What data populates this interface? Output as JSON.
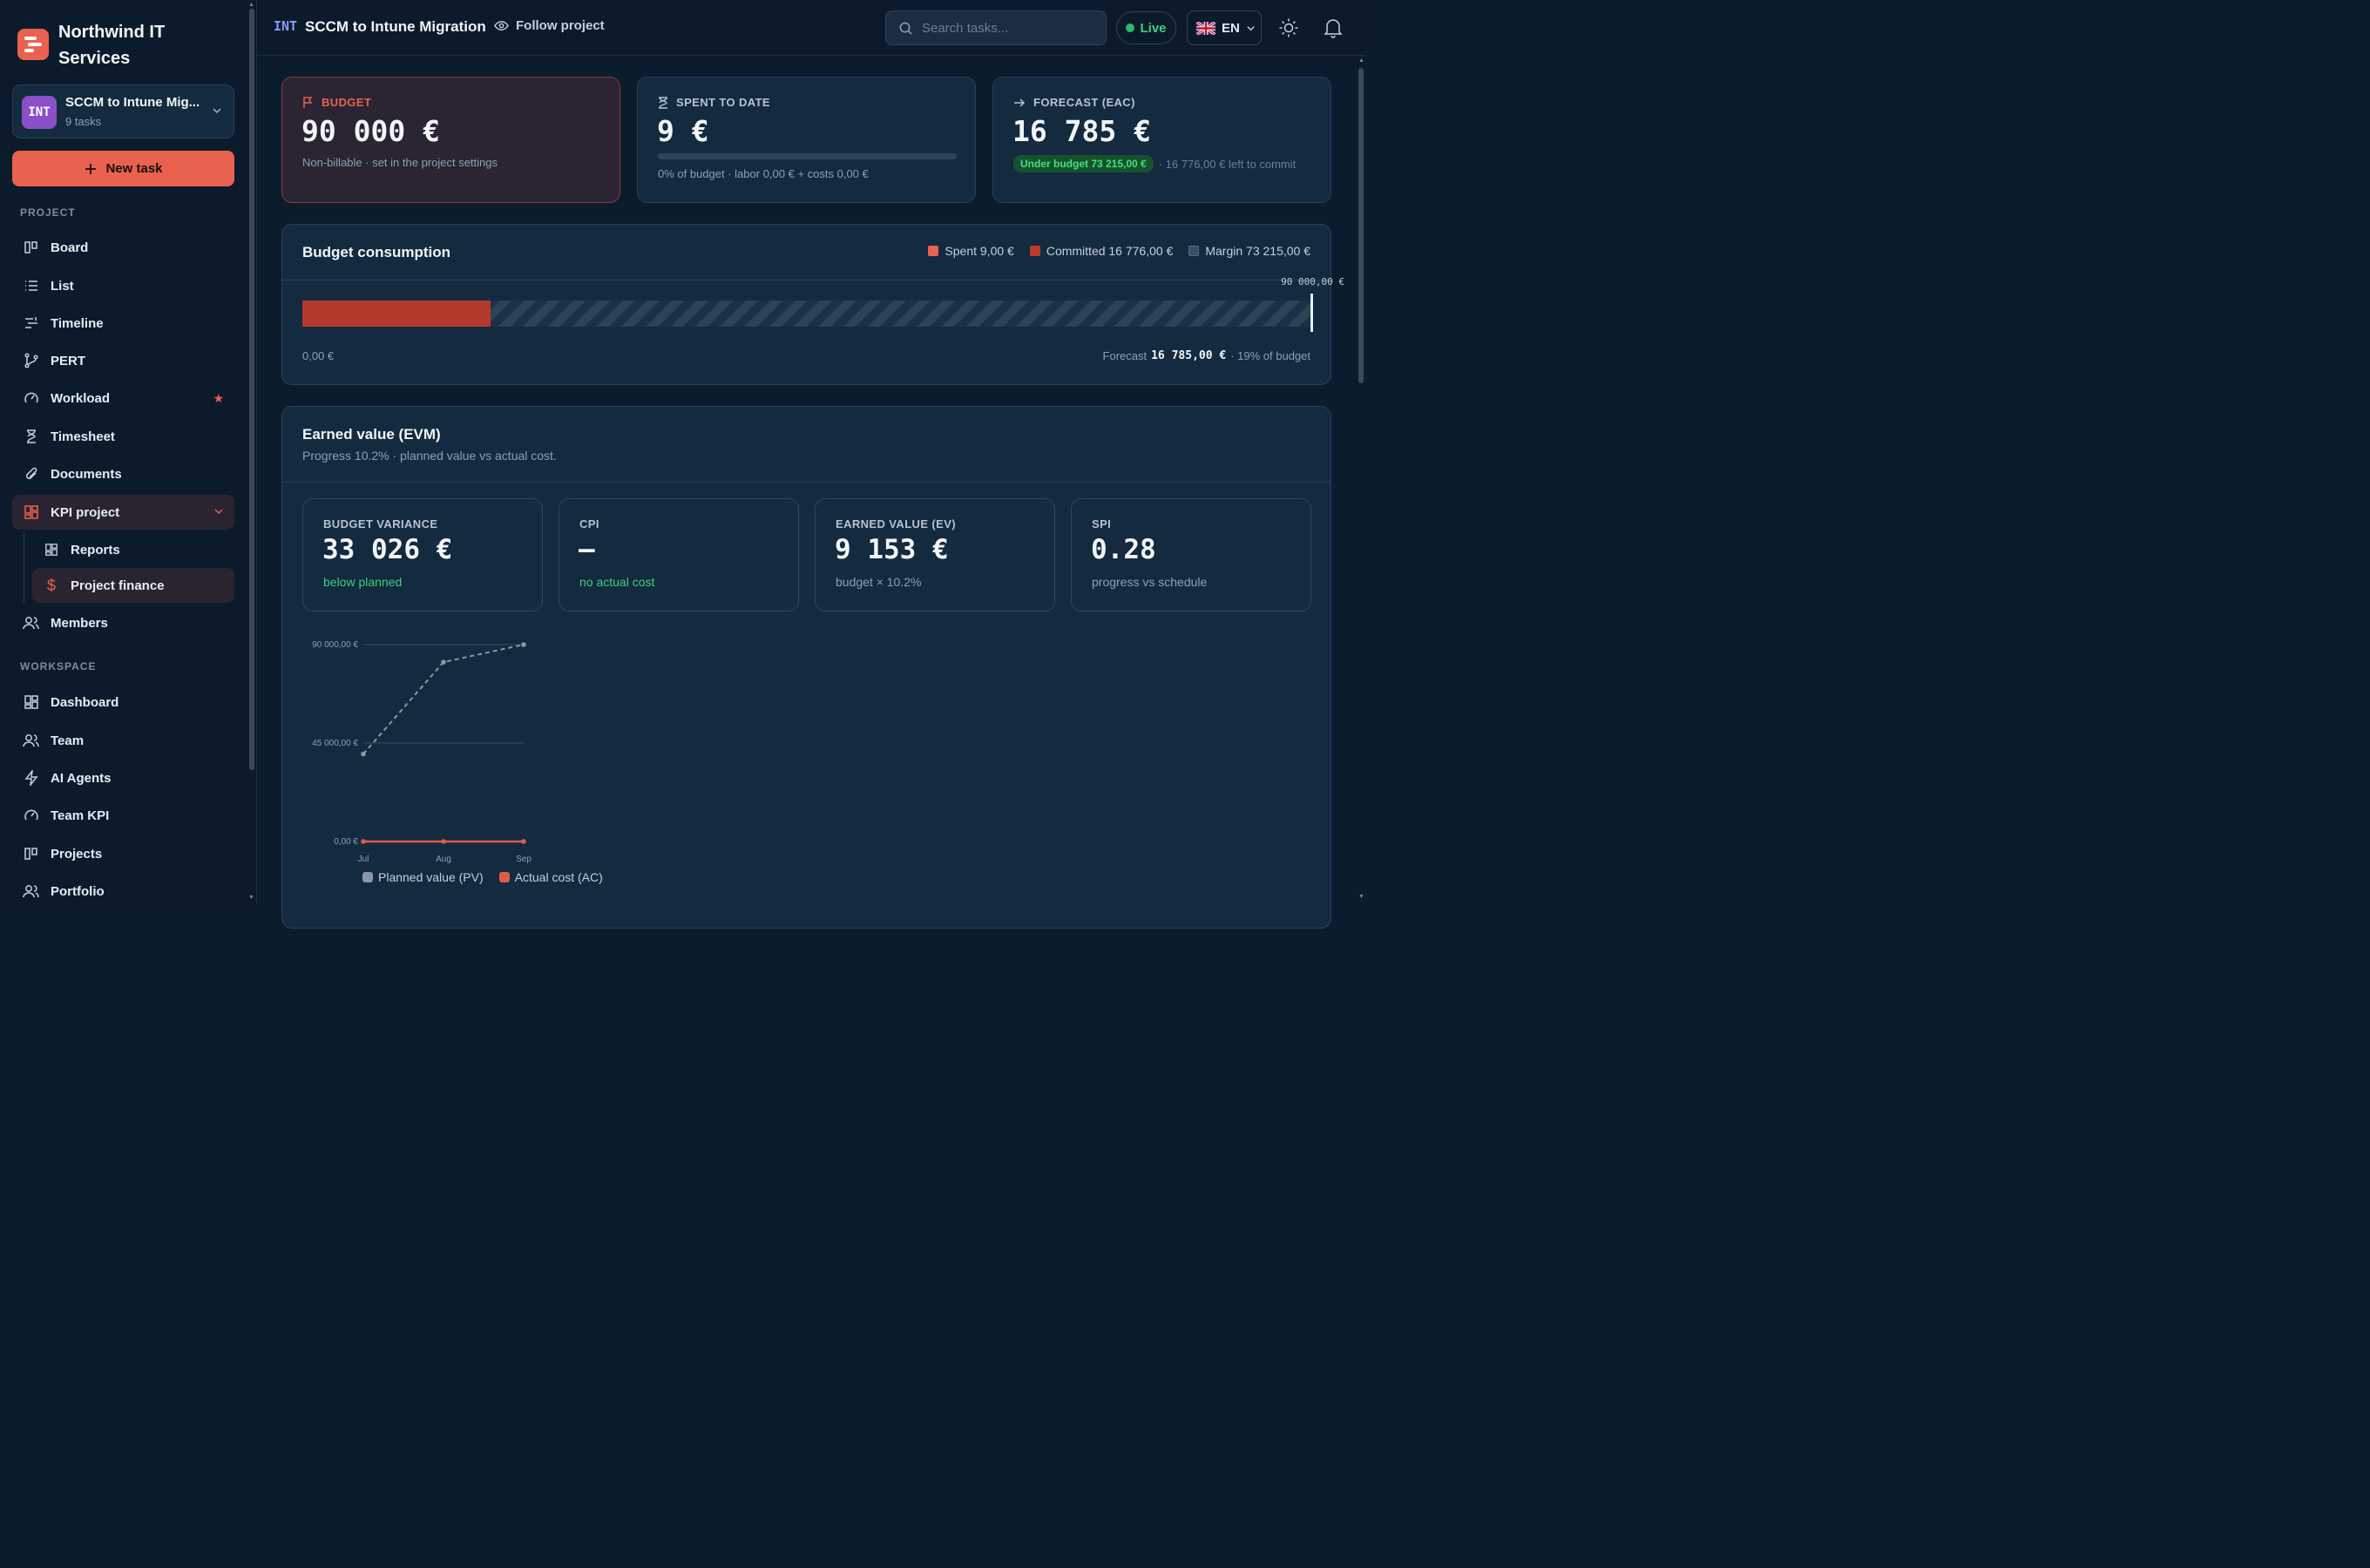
{
  "org": {
    "name": "Northwind IT Services"
  },
  "project": {
    "code": "INT",
    "name": "SCCM to Intune Mig...",
    "full_name": "SCCM to Intune Migration",
    "task_count": "9 tasks"
  },
  "actions": {
    "new_task": "New task",
    "follow": "Follow project"
  },
  "sidebar": {
    "project_section": "PROJECT",
    "workspace_section": "WORKSPACE",
    "project_items": [
      {
        "label": "Board",
        "icon": "board-icon"
      },
      {
        "label": "List",
        "icon": "list-icon"
      },
      {
        "label": "Timeline",
        "icon": "timeline-icon"
      },
      {
        "label": "PERT",
        "icon": "pert-icon"
      },
      {
        "label": "Workload",
        "icon": "gauge-icon",
        "badge": "★"
      },
      {
        "label": "Timesheet",
        "icon": "hourglass-icon"
      },
      {
        "label": "Documents",
        "icon": "paperclip-icon"
      },
      {
        "label": "KPI project",
        "icon": "dashboard-icon"
      },
      {
        "label": "Reports",
        "icon": "dashboard-icon"
      },
      {
        "label": "Project finance",
        "icon": "dollar-icon"
      },
      {
        "label": "Members",
        "icon": "users-icon"
      }
    ],
    "workspace_items": [
      {
        "label": "Dashboard",
        "icon": "dashboard-icon"
      },
      {
        "label": "Team",
        "icon": "users-icon"
      },
      {
        "label": "AI Agents",
        "icon": "bolt-icon"
      },
      {
        "label": "Team KPI",
        "icon": "gauge-icon"
      },
      {
        "label": "Projects",
        "icon": "board-icon"
      },
      {
        "label": "Portfolio",
        "icon": "users-icon"
      }
    ]
  },
  "header": {
    "search_placeholder": "Search tasks...",
    "live": "Live",
    "lang": "EN"
  },
  "kpis": {
    "budget": {
      "label": "BUDGET",
      "value": "90 000 €",
      "sub": "Non-billable · set in the project settings"
    },
    "spent": {
      "label": "SPENT TO DATE",
      "value": "9 €",
      "sub": "0% of budget · labor 0,00 € + costs 0,00 €",
      "progress": 0.0001
    },
    "forecast": {
      "label": "FORECAST (EAC)",
      "value": "16 785 €",
      "pill": "Under budget 73 215,00 €",
      "sub": "· 16 776,00 € left to commit"
    }
  },
  "consumption": {
    "title": "Budget consumption",
    "legend": [
      "Spent 9,00 €",
      "Committed 16 776,00 €",
      "Margin 73 215,00 €"
    ],
    "colors": {
      "spent": "#e8624f",
      "committed": "#c0392b",
      "margin": "#3b4f63"
    },
    "max_label": "90 000,00 €",
    "min_label": "0,00 €",
    "forecast_prefix": "Forecast",
    "forecast_value": "16 785,00 €",
    "forecast_suffix": "· 19% of budget",
    "fraction": 0.1865
  },
  "evm": {
    "title": "Earned value (EVM)",
    "subtitle": "Progress 10.2% · planned value vs actual cost.",
    "cards": [
      {
        "label": "BUDGET VARIANCE",
        "value": "33 026 €",
        "sub": "below planned"
      },
      {
        "label": "CPI",
        "value": "—",
        "sub": "no actual cost"
      },
      {
        "label": "EARNED VALUE (EV)",
        "value": "9 153 €",
        "sub": "budget × 10.2%"
      },
      {
        "label": "SPI",
        "value": "0.28",
        "sub": "progress vs schedule"
      }
    ]
  },
  "chart_data": {
    "type": "line",
    "categories": [
      "Jul",
      "Aug",
      "Sep"
    ],
    "y_ticks": [
      "90 000,00 €",
      "45 000,00 €",
      "0,00 €"
    ],
    "ylim": [
      0,
      90000
    ],
    "series": [
      {
        "name": "Planned value (PV)",
        "values": [
          40000,
          82000,
          90000
        ],
        "color": "#8a96a3",
        "dashed": true
      },
      {
        "name": "Actual cost (AC)",
        "values": [
          0,
          0,
          9
        ],
        "color": "#e05a4a",
        "dashed": false
      }
    ]
  }
}
